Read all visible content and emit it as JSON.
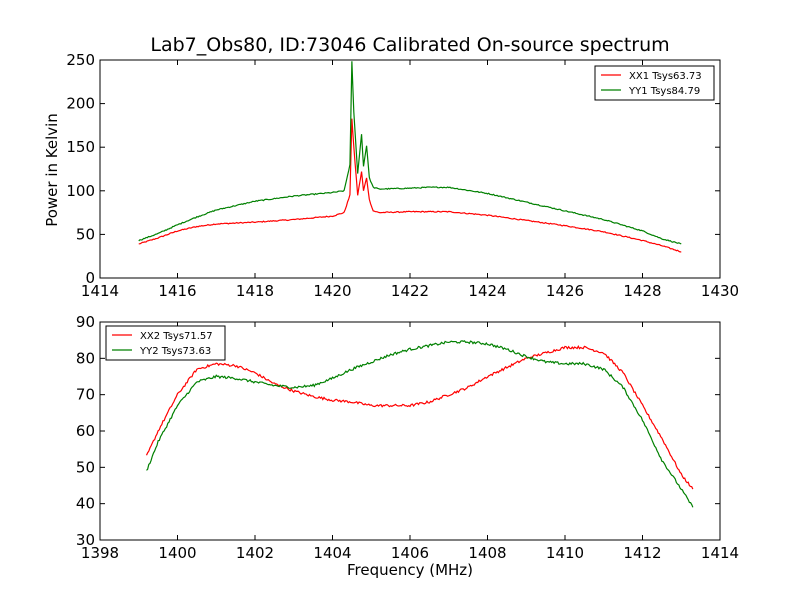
{
  "title": "Lab7_Obs80, ID:73046 Calibrated On-source spectrum",
  "ylabel": "Power in Kelvin",
  "xlabel": "Frequency (MHz)",
  "colors": {
    "red": "#ff0000",
    "green": "#008000"
  },
  "chart_data": [
    {
      "type": "line",
      "xlim": [
        1414,
        1430
      ],
      "ylim": [
        0,
        250
      ],
      "xticks": [
        1414,
        1416,
        1418,
        1420,
        1422,
        1424,
        1426,
        1428,
        1430
      ],
      "yticks": [
        0,
        50,
        100,
        150,
        200,
        250
      ],
      "legend_position": "top-right",
      "series": [
        {
          "name": "XX1 Tsys63.73",
          "color": "#ff0000",
          "x": [
            1415,
            1415.5,
            1416,
            1416.5,
            1417,
            1418,
            1419,
            1420,
            1420.3,
            1420.45,
            1420.5,
            1420.55,
            1420.65,
            1420.75,
            1420.8,
            1420.88,
            1420.95,
            1421.05,
            1421.2,
            1422,
            1422.5,
            1423,
            1424,
            1425,
            1426,
            1427,
            1428,
            1428.5,
            1429
          ],
          "y": [
            39,
            46,
            54,
            59,
            62,
            64,
            67,
            71,
            75,
            95,
            183,
            150,
            95,
            122,
            100,
            115,
            90,
            77,
            75,
            76,
            76,
            76,
            72,
            66,
            60,
            53,
            43,
            37,
            30
          ]
        },
        {
          "name": "YY1 Tsys84.79",
          "color": "#008000",
          "x": [
            1415,
            1415.5,
            1416,
            1416.5,
            1417,
            1418,
            1419,
            1420,
            1420.3,
            1420.45,
            1420.5,
            1420.55,
            1420.65,
            1420.75,
            1420.8,
            1420.88,
            1420.95,
            1421.05,
            1421.2,
            1422,
            1422.5,
            1423,
            1424,
            1425,
            1426,
            1427,
            1428,
            1428.5,
            1429
          ],
          "y": [
            43,
            51,
            61,
            70,
            78,
            88,
            94,
            98,
            100,
            130,
            248,
            190,
            120,
            165,
            128,
            152,
            115,
            104,
            102,
            103,
            104,
            104,
            97,
            87,
            77,
            67,
            54,
            45,
            39
          ]
        }
      ]
    },
    {
      "type": "line",
      "xlim": [
        1398,
        1414
      ],
      "ylim": [
        30,
        90
      ],
      "xticks": [
        1398,
        1400,
        1402,
        1404,
        1406,
        1408,
        1410,
        1412,
        1414
      ],
      "yticks": [
        30,
        40,
        50,
        60,
        70,
        80,
        90
      ],
      "legend_position": "top-left",
      "series": [
        {
          "name": "XX2 Tsys71.57",
          "color": "#ff0000",
          "x": [
            1399.2,
            1399.5,
            1400,
            1400.5,
            1401,
            1401.5,
            1402,
            1402.5,
            1403,
            1403.5,
            1404,
            1404.5,
            1405,
            1405.5,
            1406,
            1406.5,
            1407,
            1407.5,
            1408,
            1408.5,
            1409,
            1409.5,
            1410,
            1410.5,
            1411,
            1411.5,
            1412,
            1412.5,
            1413,
            1413.3
          ],
          "y": [
            53,
            60,
            70,
            77,
            78.5,
            78,
            76,
            73,
            71,
            69.5,
            68.5,
            68,
            67,
            67,
            67,
            68,
            70,
            72,
            75,
            77.5,
            80,
            81.5,
            83,
            83,
            81.5,
            76,
            67,
            58,
            48,
            44
          ]
        },
        {
          "name": "YY2 Tsys73.63",
          "color": "#008000",
          "x": [
            1399.2,
            1399.5,
            1400,
            1400.5,
            1401,
            1401.5,
            1402,
            1402.5,
            1403,
            1403.5,
            1404,
            1404.5,
            1405,
            1405.5,
            1406,
            1406.5,
            1407,
            1407.5,
            1408,
            1408.5,
            1409,
            1409.5,
            1410,
            1410.5,
            1411,
            1411.5,
            1412,
            1412.5,
            1413,
            1413.3
          ],
          "y": [
            49,
            57,
            67,
            73.5,
            75,
            74.5,
            73.5,
            72.5,
            72,
            72.5,
            74.5,
            77,
            79,
            81,
            82.5,
            83.5,
            84.5,
            84.5,
            84,
            82.5,
            80.5,
            79,
            78.5,
            78.5,
            77,
            72,
            63,
            52,
            44,
            39
          ]
        }
      ]
    }
  ]
}
